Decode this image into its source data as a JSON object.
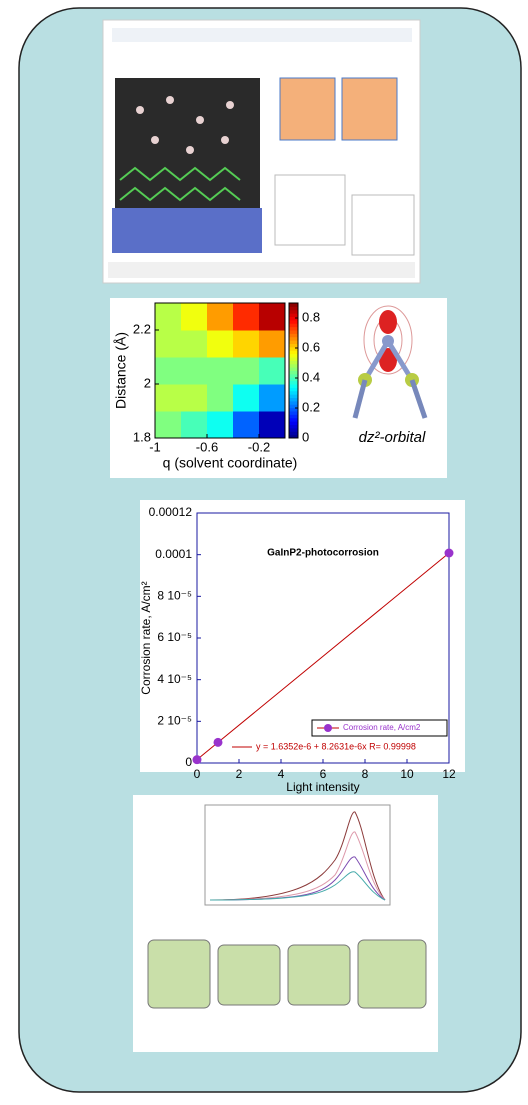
{
  "chart_data": [
    {
      "type": "heatmap",
      "xlabel": "q (solvent coordinate)",
      "ylabel": "Distance (Å)",
      "caption": "dz²-orbital",
      "xlim": [
        -1,
        0
      ],
      "ylim": [
        1.8,
        2.3
      ],
      "xticks": [
        -1,
        -0.6,
        -0.2
      ],
      "yticks": [
        1.8,
        2,
        2.2
      ],
      "zlim": [
        0,
        0.9
      ],
      "zticks": [
        0,
        0.2,
        0.4,
        0.6,
        0.8
      ],
      "values": [
        [
          0.45,
          0.4,
          0.35,
          0.2,
          0.05
        ],
        [
          0.5,
          0.5,
          0.45,
          0.35,
          0.25
        ],
        [
          0.45,
          0.45,
          0.45,
          0.45,
          0.4
        ],
        [
          0.5,
          0.5,
          0.55,
          0.6,
          0.65
        ],
        [
          0.5,
          0.55,
          0.65,
          0.75,
          0.85
        ]
      ]
    },
    {
      "type": "line",
      "title": "GaInP2-photocorrosion",
      "xlabel": "Light intensity",
      "ylabel": "Corrosion rate, A/cm²",
      "x": [
        0,
        1,
        12
      ],
      "series": [
        {
          "name": "Corrosion rate, A/cm2",
          "color": "#9933cc",
          "line_color": "#c00000",
          "values": [
            1.6e-06,
            9.9e-06,
            0.0001008
          ]
        }
      ],
      "annotation": "y = 1.6352e-6 + 8.2631e-6x   R= 0.99998",
      "xlim": [
        0,
        12
      ],
      "ylim": [
        0,
        0.00012
      ],
      "xticks": [
        0,
        2,
        4,
        6,
        8,
        10,
        12
      ],
      "yticks": [
        0,
        {
          "value": 2e-05,
          "label": "2 10⁻⁵"
        },
        {
          "value": 4e-05,
          "label": "4 10⁻⁵"
        },
        {
          "value": 6e-05,
          "label": "6 10⁻⁵"
        },
        {
          "value": 8e-05,
          "label": "8 10⁻⁵"
        },
        0.0001,
        0.00012
      ],
      "legend": "lower right"
    }
  ]
}
